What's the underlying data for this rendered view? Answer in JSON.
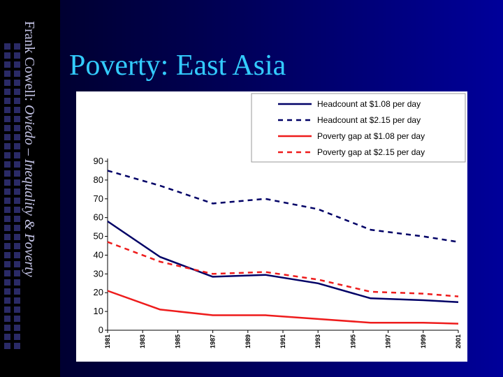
{
  "slide": {
    "title": "Poverty: East Asia",
    "sidebar_prefix": "Frank Cowell: ",
    "sidebar_italic": "Oviedo – Inequality & Poverty",
    "title_color": "#33ccff"
  },
  "chart_data": {
    "type": "line",
    "title": "",
    "xlabel": "",
    "ylabel": "",
    "ylim": [
      0,
      90
    ],
    "yticks": [
      0,
      10,
      20,
      30,
      40,
      50,
      60,
      70,
      80,
      90
    ],
    "x_ticks": [
      "1981",
      "1983",
      "1985",
      "1987",
      "1989",
      "1991",
      "1993",
      "1995",
      "1997",
      "1999",
      "2001"
    ],
    "xlim": [
      1981,
      2001
    ],
    "grid": false,
    "legend_position": "top-right",
    "series": [
      {
        "name": "Headcount at $1.08 per day",
        "color": "#000066",
        "dash": "solid",
        "x": [
          1981,
          1984,
          1987,
          1990,
          1993,
          1996,
          1999,
          2001
        ],
        "values": [
          58,
          39,
          28.5,
          29.5,
          25,
          17,
          16,
          15
        ]
      },
      {
        "name": "Headcount at $2.15 per day",
        "color": "#000066",
        "dash": "dashed",
        "x": [
          1981,
          1984,
          1987,
          1990,
          1993,
          1996,
          1999,
          2001
        ],
        "values": [
          85,
          77,
          67.5,
          70,
          64.5,
          53.5,
          50,
          47
        ]
      },
      {
        "name": "Poverty gap at $1.08 per day",
        "color": "#ee1c1c",
        "dash": "solid",
        "x": [
          1981,
          1984,
          1987,
          1990,
          1993,
          1996,
          1999,
          2001
        ],
        "values": [
          21,
          11,
          8,
          8,
          6,
          4,
          4,
          3.5
        ]
      },
      {
        "name": "Poverty gap at $2.15 per day",
        "color": "#ee1c1c",
        "dash": "dashed",
        "x": [
          1981,
          1984,
          1987,
          1990,
          1993,
          1996,
          1999,
          2001
        ],
        "values": [
          47,
          36.5,
          30,
          31,
          27,
          20.5,
          19.5,
          18
        ]
      }
    ]
  }
}
